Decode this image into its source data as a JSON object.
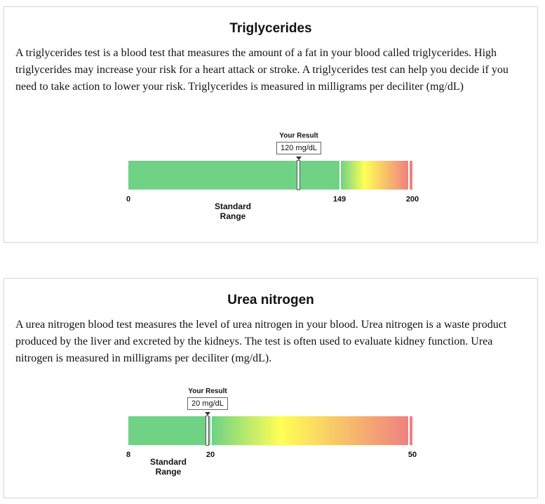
{
  "tests": [
    {
      "title": "Triglycerides",
      "description": "A triglycerides test is a blood test that measures the amount of a fat in your blood called triglycerides. High triglycerides may increase your risk for a heart attack or stroke. A triglycerides test can help you decide if you need to take action to lower your risk. Triglycerides is measured in milligrams per deciliter (mg/dL)",
      "result_label": "Your Result",
      "result_value": 120,
      "result_text": "120 mg/dL",
      "scale_min": 0,
      "scale_max": 200,
      "standard_max": 149,
      "ticks": [
        "0",
        "149",
        "200"
      ],
      "range_label_line1": "Standard",
      "range_label_line2": "Range",
      "colors": {
        "normal": "#6fd285",
        "mid": "#ffff55",
        "high": "#f08080"
      }
    },
    {
      "title": "Urea nitrogen",
      "description": "A urea nitrogen blood test measures the level of urea nitrogen in your blood. Urea nitrogen is a waste product produced by the liver and excreted by the kidneys. The test is often used to evaluate kidney function. Urea nitrogen is measured in milligrams per deciliter (mg/dL).",
      "result_label": "Your Result",
      "result_value": 20,
      "result_text": "20 mg/dL",
      "scale_min": 8,
      "scale_max": 50,
      "standard_max": 20,
      "ticks": [
        "8",
        "20",
        "50"
      ],
      "range_label_line1": "Standard",
      "range_label_line2": "Range",
      "colors": {
        "normal": "#6fd285",
        "mid": "#ffff55",
        "high": "#f08080"
      }
    }
  ]
}
